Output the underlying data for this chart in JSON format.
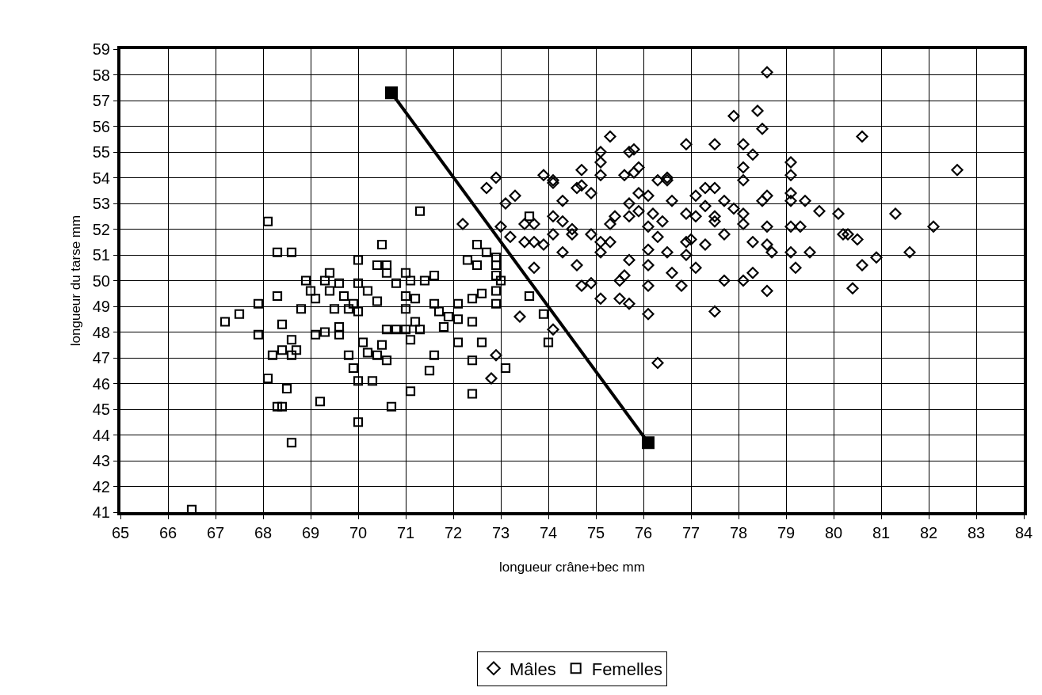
{
  "chart_data": {
    "type": "scatter",
    "xlabel": "longueur crâne+bec mm",
    "ylabel": "longueur du tarse mm",
    "xlim": [
      65,
      84
    ],
    "xticks": [
      65,
      66,
      67,
      68,
      69,
      70,
      71,
      72,
      73,
      74,
      75,
      76,
      77,
      78,
      79,
      80,
      81,
      82,
      83,
      84
    ],
    "ylim": [
      41,
      59
    ],
    "yticks": [
      41,
      42,
      43,
      44,
      45,
      46,
      47,
      48,
      49,
      50,
      51,
      52,
      53,
      54,
      55,
      56,
      57,
      58,
      59
    ],
    "grid": true,
    "legend": "bottom",
    "series": [
      {
        "name": "Mâles",
        "color": "#000000",
        "marker": "diamond",
        "x": [
          72.2,
          72.7,
          72.9,
          73.0,
          73.1,
          73.2,
          73.3,
          73.5,
          73.5,
          73.4,
          73.7,
          73.7,
          73.7,
          73.9,
          73.9,
          74.1,
          74.1,
          74.1,
          74.1,
          74.1,
          74.3,
          74.3,
          74.3,
          74.5,
          74.5,
          74.6,
          74.6,
          74.7,
          74.7,
          74.7,
          74.9,
          74.9,
          74.9,
          75.1,
          75.1,
          75.1,
          75.1,
          75.1,
          75.1,
          75.3,
          75.3,
          75.3,
          75.4,
          75.5,
          75.5,
          75.6,
          75.6,
          75.7,
          75.7,
          75.7,
          75.7,
          75.7,
          75.8,
          75.8,
          75.9,
          75.9,
          75.9,
          76.1,
          76.1,
          76.1,
          76.1,
          76.1,
          76.1,
          76.2,
          76.3,
          76.3,
          76.4,
          76.3,
          76.5,
          76.5,
          76.5,
          76.6,
          76.6,
          76.8,
          76.9,
          76.9,
          76.9,
          76.9,
          77.0,
          77.1,
          77.1,
          77.1,
          77.3,
          77.3,
          77.3,
          77.5,
          77.5,
          77.5,
          77.5,
          77.5,
          77.7,
          77.7,
          77.7,
          77.9,
          77.9,
          78.1,
          78.1,
          78.1,
          78.1,
          78.1,
          78.1,
          78.3,
          78.3,
          78.3,
          78.4,
          78.5,
          78.5,
          78.6,
          78.6,
          78.6,
          78.6,
          78.6,
          78.7,
          79.1,
          79.1,
          79.1,
          79.1,
          79.1,
          79.1,
          79.2,
          79.3,
          79.4,
          79.5,
          79.7,
          80.1,
          80.2,
          80.3,
          80.4,
          80.5,
          80.6,
          80.6,
          80.9,
          81.3,
          81.6,
          82.1,
          82.6,
          72.8,
          72.9
        ],
        "values": [
          52.2,
          53.6,
          54.0,
          52.1,
          53.0,
          51.7,
          53.3,
          51.5,
          52.2,
          48.6,
          52.2,
          51.5,
          50.5,
          54.1,
          51.4,
          53.9,
          53.8,
          52.5,
          51.8,
          48.1,
          53.1,
          52.3,
          51.1,
          52.0,
          51.8,
          53.6,
          50.6,
          54.3,
          53.7,
          49.8,
          53.4,
          51.8,
          49.9,
          55.0,
          54.6,
          54.1,
          51.5,
          51.1,
          49.3,
          52.2,
          51.5,
          55.6,
          52.5,
          50.0,
          49.3,
          54.1,
          50.2,
          55.0,
          53.0,
          52.5,
          50.8,
          49.1,
          55.1,
          54.2,
          54.4,
          53.4,
          52.7,
          53.3,
          52.1,
          51.2,
          50.6,
          49.8,
          48.7,
          52.6,
          51.7,
          53.9,
          52.3,
          46.8,
          54.0,
          53.9,
          51.1,
          50.3,
          53.1,
          49.8,
          55.3,
          52.6,
          51.5,
          51.0,
          51.6,
          53.3,
          52.5,
          50.5,
          53.6,
          52.9,
          51.4,
          55.3,
          53.6,
          52.5,
          52.3,
          48.8,
          53.1,
          51.8,
          50.0,
          56.4,
          52.8,
          55.3,
          54.4,
          53.9,
          52.6,
          52.2,
          50.0,
          54.9,
          51.5,
          50.3,
          56.6,
          55.9,
          53.1,
          58.1,
          53.3,
          52.1,
          51.4,
          49.6,
          51.1,
          54.6,
          54.1,
          53.4,
          53.1,
          52.1,
          51.1,
          50.5,
          52.1,
          53.1,
          51.1,
          52.7,
          52.6,
          51.8,
          51.8,
          49.7,
          51.6,
          55.6,
          50.6,
          50.9,
          52.6,
          51.1,
          52.1,
          54.3,
          46.2,
          47.1
        ]
      },
      {
        "name": "Femelles",
        "color": "#000000",
        "marker": "square",
        "x": [
          66.5,
          67.2,
          67.5,
          67.9,
          67.9,
          68.1,
          68.1,
          68.2,
          68.3,
          68.3,
          68.4,
          68.3,
          68.4,
          68.4,
          68.5,
          68.6,
          68.6,
          68.6,
          68.6,
          68.7,
          68.8,
          68.9,
          69.0,
          69.1,
          69.1,
          69.2,
          69.3,
          69.3,
          69.4,
          69.4,
          69.5,
          69.6,
          69.6,
          69.6,
          69.7,
          69.8,
          69.8,
          69.9,
          69.9,
          70.0,
          70.0,
          70.0,
          70.0,
          70.0,
          70.1,
          70.2,
          70.2,
          70.3,
          70.4,
          70.4,
          70.4,
          70.5,
          70.5,
          70.6,
          70.6,
          70.6,
          70.6,
          70.7,
          70.8,
          70.8,
          71.0,
          71.0,
          71.0,
          71.0,
          71.1,
          71.1,
          71.1,
          71.2,
          71.2,
          71.3,
          71.3,
          71.4,
          71.5,
          71.6,
          71.6,
          71.6,
          71.7,
          71.8,
          71.9,
          72.1,
          72.1,
          72.1,
          72.3,
          72.4,
          72.4,
          72.4,
          72.4,
          72.5,
          72.5,
          72.6,
          72.6,
          72.7,
          72.9,
          72.9,
          72.9,
          72.9,
          72.9,
          73.0,
          73.1,
          73.6,
          73.6,
          73.9,
          74.0
        ],
        "values": [
          41.1,
          48.4,
          48.7,
          49.1,
          47.9,
          52.3,
          46.2,
          47.1,
          51.1,
          49.4,
          48.3,
          45.1,
          45.1,
          47.3,
          45.8,
          47.7,
          43.7,
          51.1,
          47.1,
          47.3,
          48.9,
          50.0,
          49.6,
          47.9,
          49.3,
          45.3,
          48.0,
          50.0,
          50.3,
          49.6,
          48.9,
          49.9,
          48.2,
          47.9,
          49.4,
          47.1,
          48.9,
          49.1,
          46.6,
          49.9,
          48.8,
          46.1,
          44.5,
          50.8,
          47.6,
          49.6,
          47.2,
          46.1,
          49.2,
          50.6,
          47.1,
          51.4,
          47.5,
          50.6,
          50.3,
          48.1,
          46.9,
          45.1,
          49.9,
          48.1,
          50.3,
          49.4,
          48.9,
          48.1,
          50.0,
          47.7,
          45.7,
          49.3,
          48.4,
          52.7,
          48.1,
          50.0,
          46.5,
          50.2,
          49.1,
          47.1,
          48.8,
          48.2,
          48.6,
          49.1,
          48.5,
          47.6,
          50.8,
          49.3,
          48.4,
          46.9,
          45.6,
          51.4,
          50.6,
          49.5,
          47.6,
          51.1,
          50.9,
          50.6,
          50.2,
          49.6,
          49.1,
          50.0,
          46.6,
          52.5,
          49.4,
          48.7,
          47.6
        ]
      },
      {
        "type": "line",
        "color": "#000000",
        "marker": "square",
        "x": [
          70.7,
          76.1
        ],
        "values": [
          57.3,
          43.7
        ]
      }
    ]
  }
}
